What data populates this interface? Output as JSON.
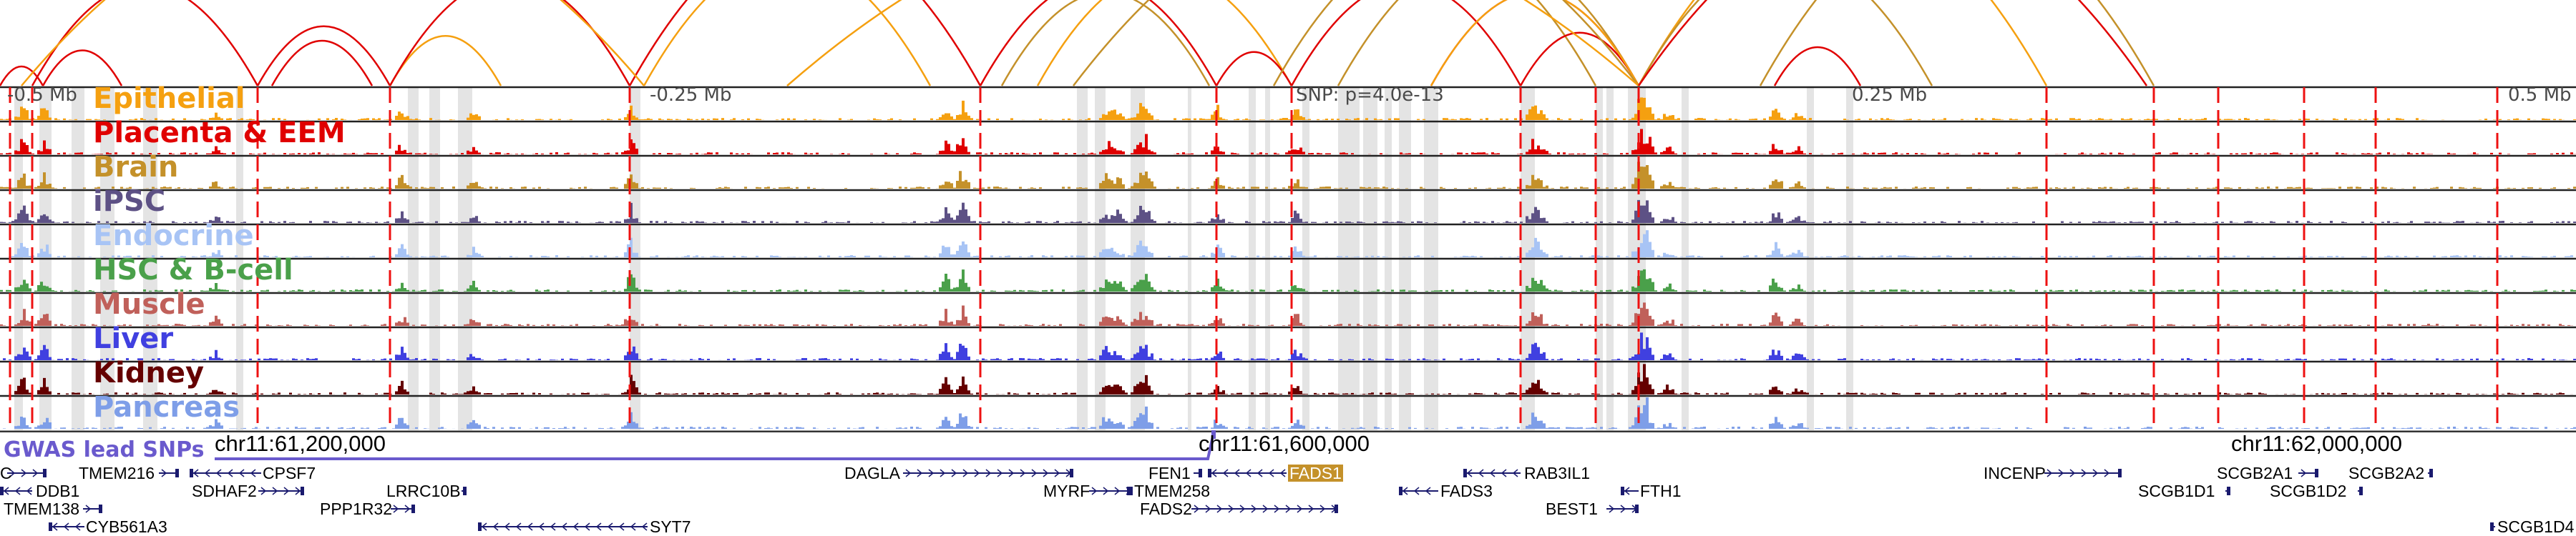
{
  "tracks": [
    {
      "label": "Epithelial",
      "color": "#f5a010"
    },
    {
      "label": "Placenta & EEM",
      "color": "#e00000"
    },
    {
      "label": "Brain",
      "color": "#c4912a"
    },
    {
      "label": "iPSC",
      "color": "#5d5185"
    },
    {
      "label": "Endocrine",
      "color": "#a8c4f5"
    },
    {
      "label": "HSC & B-cell",
      "color": "#4aa04a"
    },
    {
      "label": "Muscle",
      "color": "#c0605a"
    },
    {
      "label": "Liver",
      "color": "#4040e0"
    },
    {
      "label": "Kidney",
      "color": "#650000"
    },
    {
      "label": "Pancreas",
      "color": "#7e9ee8"
    }
  ],
  "axis": {
    "minus_half": "-0.5 Mb",
    "minus_quarter": "-0.25 Mb",
    "snp": "SNP: p=4.0e-13",
    "plus_quarter": "0.25 Mb",
    "plus_half": "0.5 Mb"
  },
  "coords": [
    "chr11:61,200,000",
    "chr11:61,600,000",
    "chr11:62,000,000"
  ],
  "gwas_label": "GWAS lead SNPs",
  "gwas_color": "#6a5acd",
  "highlight_gene": "FADS1",
  "genes": [
    {
      "name": "C",
      "row": 0
    },
    {
      "name": "TMEM216",
      "row": 0
    },
    {
      "name": "CPSF7",
      "row": 0
    },
    {
      "name": "DAGLA",
      "row": 0
    },
    {
      "name": "FEN1",
      "row": 0
    },
    {
      "name": "FADS1",
      "row": 0
    },
    {
      "name": "RAB3IL1",
      "row": 0
    },
    {
      "name": "INCENP",
      "row": 0
    },
    {
      "name": "SCGB2A1",
      "row": 0
    },
    {
      "name": "SCGB2A2",
      "row": 0
    },
    {
      "name": "DDB1",
      "row": 1
    },
    {
      "name": "SDHAF2",
      "row": 1
    },
    {
      "name": "LRRC10B",
      "row": 1
    },
    {
      "name": "MYRF",
      "row": 1
    },
    {
      "name": "TMEM258",
      "row": 1
    },
    {
      "name": "FADS3",
      "row": 1
    },
    {
      "name": "FTH1",
      "row": 1
    },
    {
      "name": "SCGB1D1",
      "row": 1
    },
    {
      "name": "SCGB1D2",
      "row": 1
    },
    {
      "name": "TMEM138",
      "row": 2
    },
    {
      "name": "PPP1R32",
      "row": 2
    },
    {
      "name": "FADS2",
      "row": 2
    },
    {
      "name": "BEST1",
      "row": 2
    },
    {
      "name": "CYB561A3",
      "row": 3
    },
    {
      "name": "SYT7",
      "row": 3
    },
    {
      "name": "SCGB1D4",
      "row": 3
    }
  ]
}
